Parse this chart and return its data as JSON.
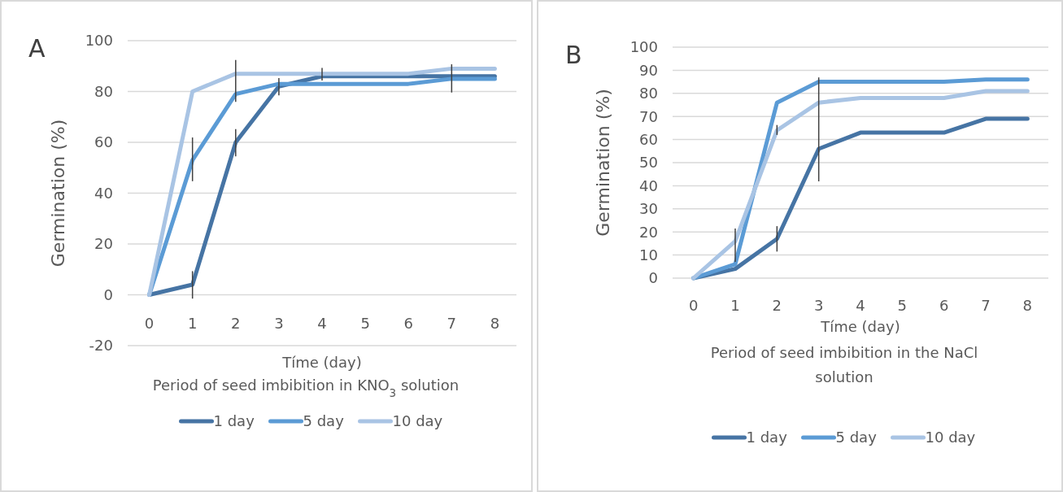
{
  "chart_data": [
    {
      "type": "line",
      "title": "A",
      "xlabel": "Tíme (day)",
      "ylabel": "Germination (%)",
      "legend_title": "Period of seed imbibition in KNO$_{3}$ solution",
      "categories": [
        "0",
        "1",
        "2",
        "3",
        "4",
        "5",
        "6",
        "7",
        "8"
      ],
      "ylim": [
        -20,
        100
      ],
      "yticks": [
        -20,
        0,
        20,
        40,
        60,
        80,
        100
      ],
      "grid": "y",
      "legend": "bottom",
      "marker": "none",
      "series": [
        {
          "name": "1 day",
          "color": "#4674a4",
          "values": [
            0,
            4,
            60,
            82,
            86,
            86,
            86,
            86,
            86
          ],
          "errors": [
            null,
            [
              -1.5,
              9.3
            ],
            [
              54.5,
              65.2
            ],
            [
              78.5,
              85.3
            ],
            [
              84.3,
              89.3
            ],
            null,
            null,
            null,
            null
          ]
        },
        {
          "name": "5 day",
          "color": "#5b9bd5",
          "values": [
            0,
            53,
            79,
            83,
            83,
            83,
            83,
            85,
            85
          ],
          "errors": [
            null,
            [
              44.7,
              61.9
            ],
            null,
            null,
            null,
            null,
            null,
            [
              79.6,
              90.7
            ],
            null
          ]
        },
        {
          "name": "10 day",
          "color": "#a9c4e4",
          "values": [
            0,
            80,
            87,
            87,
            87,
            87,
            87,
            89,
            89
          ],
          "errors": [
            null,
            null,
            [
              75.9,
              92.4
            ],
            null,
            null,
            null,
            null,
            null,
            null
          ]
        }
      ]
    },
    {
      "type": "line",
      "title": "B",
      "xlabel": "Tíme (day)",
      "ylabel": "Germination (%)",
      "legend_title": "Period of seed imbibition in the NaCl solution",
      "categories": [
        "0",
        "1",
        "2",
        "3",
        "4",
        "5",
        "6",
        "7",
        "8"
      ],
      "ylim": [
        0,
        100
      ],
      "yticks": [
        0,
        10,
        20,
        30,
        40,
        50,
        60,
        70,
        80,
        90,
        100
      ],
      "grid": "y",
      "legend": "bottom",
      "marker": "none",
      "series": [
        {
          "name": "1 day",
          "color": "#4674a4",
          "values": [
            0,
            4,
            17,
            56,
            63,
            63,
            63,
            69,
            69
          ],
          "errors": [
            null,
            null,
            [
              11.5,
              22.5
            ],
            [
              41.9,
              86.9
            ],
            null,
            null,
            null,
            null,
            null
          ]
        },
        {
          "name": "5 day",
          "color": "#5b9bd5",
          "values": [
            0,
            6,
            76,
            85,
            85,
            85,
            85,
            86,
            86
          ]
        },
        {
          "name": "10 day",
          "color": "#a9c4e4",
          "values": [
            0,
            16,
            64,
            76,
            78,
            78,
            78,
            81,
            81
          ],
          "errors": [
            null,
            [
              7,
              21.5
            ],
            [
              62,
              66.3
            ],
            null,
            null,
            null,
            null,
            null,
            null
          ]
        }
      ]
    }
  ]
}
